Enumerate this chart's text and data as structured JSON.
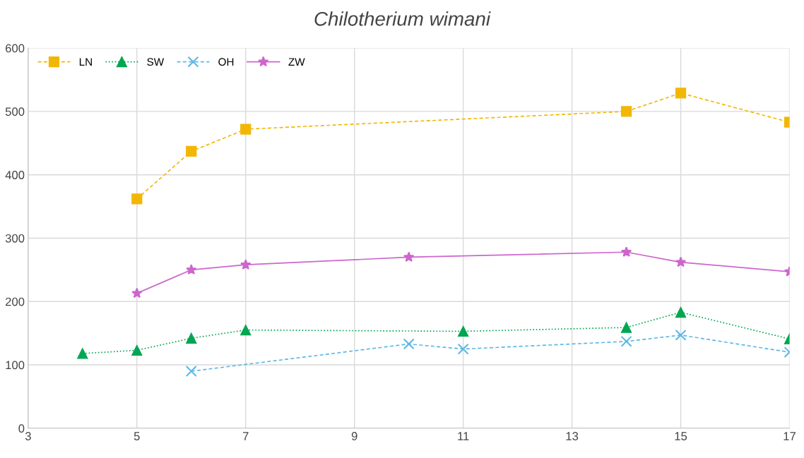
{
  "chart_data": {
    "type": "line",
    "title": "Chilotherium wimani",
    "series": [
      {
        "name": "LN",
        "color": "#f2b705",
        "marker": "square",
        "line_style": "dashed",
        "x": [
          5,
          6,
          7,
          14,
          15,
          17
        ],
        "values": [
          362,
          437,
          472,
          500,
          529,
          483
        ]
      },
      {
        "name": "SW",
        "color": "#00a651",
        "marker": "triangle",
        "line_style": "dotted",
        "x": [
          4,
          5,
          6,
          7,
          11,
          14,
          15,
          17
        ],
        "values": [
          118,
          123,
          142,
          155,
          153,
          159,
          183,
          141
        ]
      },
      {
        "name": "OH",
        "color": "#5bb8e6",
        "marker": "cross",
        "line_style": "dashed",
        "x": [
          6,
          10,
          11,
          14,
          15,
          17
        ],
        "values": [
          90,
          133,
          125,
          137,
          147,
          120
        ]
      },
      {
        "name": "ZW",
        "color": "#cc66cc",
        "marker": "star",
        "line_style": "solid",
        "x": [
          5,
          6,
          7,
          10,
          14,
          15,
          17
        ],
        "values": [
          213,
          250,
          258,
          270,
          278,
          262,
          247
        ]
      }
    ],
    "xlim": [
      3,
      17
    ],
    "xticks": [
      3,
      5,
      7,
      9,
      11,
      13,
      15,
      17
    ],
    "ylim": [
      0,
      600
    ],
    "yticks": [
      0,
      100,
      200,
      300,
      400,
      500,
      600
    ],
    "grid": true,
    "legend": "top left"
  }
}
